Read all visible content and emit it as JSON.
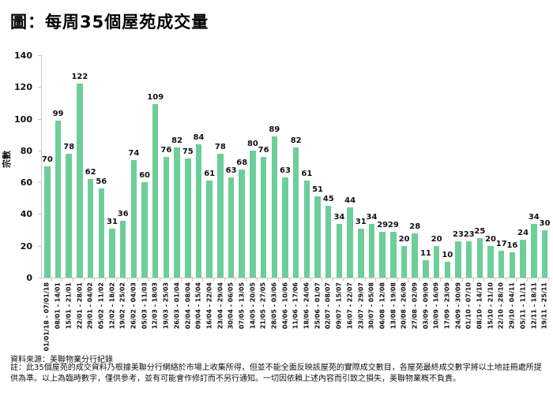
{
  "title": "圖：每周35個屋苑成交量",
  "chart_data": {
    "type": "bar",
    "title": "圖：每周35個屋苑成交量",
    "xlabel": "",
    "ylabel": "宗數",
    "ylim": [
      0,
      140
    ],
    "yticks": [
      0,
      20,
      40,
      60,
      80,
      100,
      120,
      140
    ],
    "grid": false,
    "legend_position": "none",
    "data_labels": true,
    "bar_color": "#6dce99",
    "axis_color": "#c6c6c6",
    "categories": [
      "01/01/18 - 07/01/18",
      "08/01 - 14/01",
      "15/01 - 21/01",
      "22/01 - 28/01",
      "29/01 - 04/02",
      "05/02 - 11/02",
      "12/02 - 18/02",
      "19/02 - 25/02",
      "26/02 - 04/03",
      "05/03 - 11/03",
      "12/03 - 18/03",
      "19/03 - 25/03",
      "26/03 - 01/04",
      "02/04 - 08/04",
      "09/04 - 15/04",
      "16/04 - 22/04",
      "23/04 - 29/04",
      "30/04 - 06/05",
      "07/05 - 13/05",
      "14/05 - 20/05",
      "21/05 - 27/05",
      "28/05 - 03/06",
      "04/06 - 10/06",
      "11/06 - 17/06",
      "18/06 - 24/06",
      "25/06 - 01/07",
      "02/07 - 08/07",
      "09/07 - 15/07",
      "16/07 - 22/07",
      "23/07 - 29/07",
      "30/07 - 05/08",
      "06/08 - 12/08",
      "13/08 - 19/08",
      "20/08 - 26/08",
      "27/08 - 02/09",
      "03/09 - 09/09",
      "10/09 - 16/09",
      "17/09 - 23/09",
      "24/09 - 30/09",
      "01/10 - 07/10",
      "08/10 - 14/10",
      "15/10 - 21/10",
      "22/10 - 28/10",
      "29/10 - 04/11",
      "05/11 - 11/11",
      "12/11 - 18/11",
      "19/11 - 25/11"
    ],
    "values": [
      70,
      99,
      78,
      122,
      62,
      56,
      31,
      36,
      74,
      60,
      109,
      76,
      82,
      75,
      84,
      61,
      78,
      63,
      68,
      80,
      76,
      89,
      63,
      82,
      61,
      51,
      45,
      34,
      44,
      31,
      34,
      29,
      29,
      20,
      28,
      11,
      20,
      10,
      23,
      23,
      25,
      20,
      17,
      16,
      24,
      34,
      30
    ]
  },
  "footer": {
    "source": "資料來源：美聯物業分行紀錄",
    "note": "註：此35個屋苑的成交資料乃根據美聯分行網絡於市場上收集所得，但並不能全面反映該屋苑的實際成交數目，各屋苑最終成交數字將以土地註冊處所提供為準。以上為臨時數字，僅供參考，並有可能會作修訂而不另行通知。一切因依賴上述內容而引致之損失，美聯物業概不負責。"
  }
}
